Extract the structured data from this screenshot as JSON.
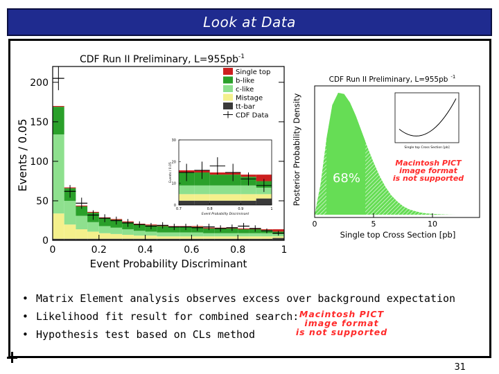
{
  "slide": {
    "title": "Look at Data",
    "page_number": "31",
    "bullets": [
      "Matrix Element analysis observes excess over background expectation",
      "Likelihood fit result for combined search:",
      "Hypothesis test based on CLs method"
    ],
    "unsupported_image_text": [
      "Macintosh PICT",
      "image format",
      "is not supported"
    ]
  },
  "colors": {
    "title_bar": "#1f2b8f",
    "single_top": "#cc1f1f",
    "b_like": "#2aa02a",
    "c_like": "#8ee08e",
    "mistage": "#f4f08c",
    "tt_bar": "#3a3a3a",
    "posterior": "#66dd55",
    "unsupported_text": "#ff2a2a"
  },
  "chart_data": [
    {
      "type": "bar",
      "stacked": true,
      "title": "CDF Run II Preliminary, L=955pb",
      "title_superscript": "-1",
      "xlabel": "Event Probability Discriminant",
      "ylabel": "Events / 0.05",
      "xlim": [
        0,
        1
      ],
      "ylim": [
        0,
        220
      ],
      "x_ticks": [
        "0",
        "0.2",
        "0.4",
        "0.6",
        "0.8",
        "1"
      ],
      "y_ticks": [
        "0",
        "50",
        "100",
        "150",
        "200"
      ],
      "bin_width": 0.05,
      "legend_position": "top-right",
      "series": [
        {
          "name": "tt-bar",
          "color": "#3a3a3a",
          "values": [
            2,
            2,
            2,
            2,
            2,
            2,
            2,
            2,
            2,
            2,
            2,
            2,
            2,
            2,
            2,
            2,
            2,
            2,
            2,
            3
          ]
        },
        {
          "name": "Mistage",
          "color": "#f4f08c",
          "values": [
            32,
            18,
            12,
            9,
            7,
            6,
            5,
            4,
            4,
            3,
            3,
            3,
            3,
            3,
            3,
            3,
            3,
            3,
            3,
            2
          ]
        },
        {
          "name": "c-like",
          "color": "#8ee08e",
          "values": [
            100,
            30,
            17,
            12,
            9,
            8,
            7,
            6,
            5,
            5,
            5,
            5,
            5,
            4,
            4,
            4,
            4,
            4,
            4,
            3
          ]
        },
        {
          "name": "b-like",
          "color": "#2aa02a",
          "values": [
            35,
            16,
            12,
            12,
            10,
            10,
            9,
            8,
            8,
            8,
            7,
            7,
            7,
            6,
            6,
            6,
            5,
            5,
            4,
            3
          ]
        },
        {
          "name": "Single top",
          "color": "#cc1f1f",
          "values": [
            1,
            1,
            1,
            1,
            1,
            1,
            1,
            1,
            1,
            1,
            1,
            1,
            1,
            1,
            1,
            1,
            1,
            1,
            1,
            3
          ]
        }
      ],
      "data": {
        "name": "CDF Data",
        "x": [
          0.025,
          0.075,
          0.125,
          0.175,
          0.225,
          0.275,
          0.325,
          0.375,
          0.425,
          0.475,
          0.525,
          0.575,
          0.625,
          0.675,
          0.725,
          0.775,
          0.825,
          0.875,
          0.925,
          0.975
        ],
        "y": [
          205,
          62,
          47,
          32,
          28,
          25,
          22,
          20,
          18,
          19,
          17,
          17,
          16,
          17,
          15,
          16,
          18,
          15,
          12,
          9
        ],
        "err": [
          15,
          8,
          7,
          6,
          5,
          5,
          5,
          4,
          4,
          4,
          4,
          4,
          4,
          4,
          4,
          4,
          4,
          4,
          3,
          3
        ]
      },
      "inset": {
        "xlabel": "Event Probability Discriminant",
        "ylabel": "Events / 0.05",
        "xlim": [
          0.7,
          1
        ],
        "ylim": [
          0,
          30
        ],
        "x_ticks": [
          "0.7",
          "0.8",
          "0.9",
          "1"
        ],
        "y_ticks": [
          "0",
          "10",
          "20",
          "30"
        ],
        "bins_x": [
          0.725,
          0.775,
          0.825,
          0.875,
          0.925,
          0.975
        ],
        "stack": {
          "tt-bar": [
            2,
            2,
            2,
            2,
            2,
            3
          ],
          "Mistage": [
            3,
            3,
            3,
            3,
            3,
            2
          ],
          "c-like": [
            4,
            4,
            4,
            4,
            4,
            3
          ],
          "b-like": [
            6,
            6,
            5,
            5,
            4,
            3
          ],
          "Single top": [
            1,
            1,
            1,
            1,
            1,
            3
          ]
        },
        "data_y": [
          15,
          16,
          18,
          15,
          12,
          9
        ],
        "data_err": [
          4,
          4,
          4,
          4,
          3,
          3
        ]
      }
    },
    {
      "type": "area",
      "title": "CDF Run II Preliminary, L=955pb",
      "title_superscript": "-1",
      "xlabel": "Single top Cross Section [pb]",
      "ylabel": "Posterior Probability Density",
      "xlim": [
        0,
        14
      ],
      "x_ticks": [
        "0",
        "5",
        "10"
      ],
      "grid": false,
      "annotation": "68%",
      "band_68": [
        1.0,
        4.3
      ],
      "series": [
        {
          "x": [
            0,
            0.5,
            1,
            1.5,
            2,
            2.5,
            3,
            3.5,
            4,
            4.5,
            5,
            5.5,
            6,
            6.5,
            7,
            7.5,
            8,
            8.5,
            9,
            9.5,
            10,
            10.5,
            11,
            11.5,
            12
          ],
          "y": [
            0.0,
            0.25,
            0.62,
            0.9,
            1.0,
            0.99,
            0.92,
            0.81,
            0.68,
            0.55,
            0.43,
            0.32,
            0.23,
            0.16,
            0.11,
            0.07,
            0.045,
            0.03,
            0.018,
            0.011,
            0.007,
            0.004,
            0.002,
            0.001,
            0.0
          ]
        }
      ],
      "inset_text": [
        "Single top Cross Section [pb]"
      ]
    }
  ]
}
